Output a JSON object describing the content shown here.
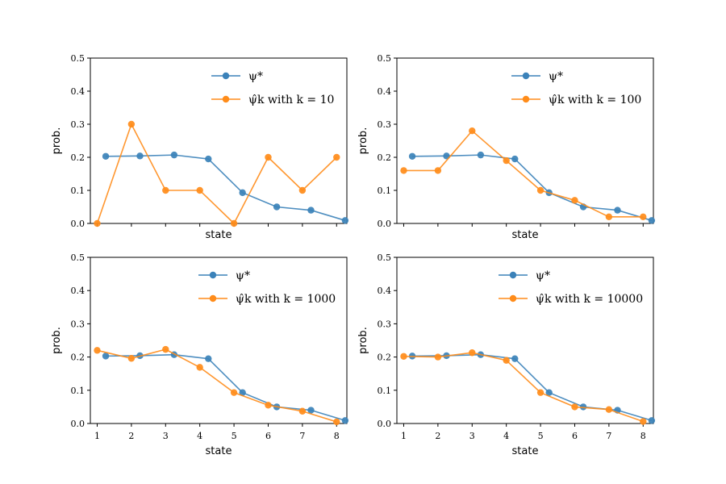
{
  "colors": {
    "psi_star": "#3b82b9",
    "psi_hat": "#ff8c1a"
  },
  "chart_data": [
    {
      "type": "line",
      "xlabel": "state",
      "ylabel": "prob.",
      "ylim": [
        0,
        0.5
      ],
      "xlim": [
        0.8,
        8.3
      ],
      "show_x_tick_labels": false,
      "yticks": [
        "0.0",
        "0.1",
        "0.2",
        "0.3",
        "0.4",
        "0.5"
      ],
      "xticks": [
        "1",
        "2",
        "3",
        "4",
        "5",
        "6",
        "7",
        "8"
      ],
      "legend": {
        "placement": "upper-right",
        "entries": [
          "ψ*",
          "ψ̂k with k = 10"
        ]
      },
      "series": [
        {
          "name": "ψ*",
          "color": "#3b82b9",
          "x": [
            1.25,
            2.25,
            3.25,
            4.25,
            5.25,
            6.25,
            7.25,
            8.25
          ],
          "y": [
            0.203,
            0.204,
            0.207,
            0.195,
            0.093,
            0.05,
            0.04,
            0.009
          ]
        },
        {
          "name": "ψ̂k with k = 10",
          "color": "#ff8c1a",
          "x": [
            1,
            2,
            3,
            4,
            5,
            6,
            7,
            8
          ],
          "y": [
            0.0,
            0.3,
            0.1,
            0.1,
            0.0,
            0.2,
            0.1,
            0.2
          ]
        }
      ]
    },
    {
      "type": "line",
      "xlabel": "state",
      "ylabel": "prob.",
      "ylim": [
        0,
        0.5
      ],
      "xlim": [
        0.8,
        8.3
      ],
      "show_x_tick_labels": false,
      "yticks": [
        "0.0",
        "0.1",
        "0.2",
        "0.3",
        "0.4",
        "0.5"
      ],
      "xticks": [
        "1",
        "2",
        "3",
        "4",
        "5",
        "6",
        "7",
        "8"
      ],
      "legend": {
        "placement": "upper-right",
        "entries": [
          "ψ*",
          "ψ̂k with k = 100"
        ]
      },
      "series": [
        {
          "name": "ψ*",
          "color": "#3b82b9",
          "x": [
            1.25,
            2.25,
            3.25,
            4.25,
            5.25,
            6.25,
            7.25,
            8.25
          ],
          "y": [
            0.203,
            0.204,
            0.207,
            0.195,
            0.093,
            0.05,
            0.04,
            0.009
          ]
        },
        {
          "name": "ψ̂k with k = 100",
          "color": "#ff8c1a",
          "x": [
            1,
            2,
            3,
            4,
            5,
            6,
            7,
            8
          ],
          "y": [
            0.16,
            0.16,
            0.28,
            0.19,
            0.1,
            0.07,
            0.02,
            0.02
          ]
        }
      ]
    },
    {
      "type": "line",
      "xlabel": "state",
      "ylabel": "prob.",
      "ylim": [
        0,
        0.5
      ],
      "xlim": [
        0.8,
        8.3
      ],
      "show_x_tick_labels": true,
      "yticks": [
        "0.0",
        "0.1",
        "0.2",
        "0.3",
        "0.4",
        "0.5"
      ],
      "xticks": [
        "1",
        "2",
        "3",
        "4",
        "5",
        "6",
        "7",
        "8"
      ],
      "legend": {
        "placement": "upper-right",
        "entries": [
          "ψ*",
          "ψ̂k with k = 1000"
        ]
      },
      "series": [
        {
          "name": "ψ*",
          "color": "#3b82b9",
          "x": [
            1.25,
            2.25,
            3.25,
            4.25,
            5.25,
            6.25,
            7.25,
            8.25
          ],
          "y": [
            0.203,
            0.204,
            0.207,
            0.195,
            0.093,
            0.05,
            0.04,
            0.009
          ]
        },
        {
          "name": "ψ̂k with k = 1000",
          "color": "#ff8c1a",
          "x": [
            1,
            2,
            3,
            4,
            5,
            6,
            7,
            8
          ],
          "y": [
            0.22,
            0.196,
            0.223,
            0.169,
            0.093,
            0.055,
            0.037,
            0.005
          ]
        }
      ]
    },
    {
      "type": "line",
      "xlabel": "state",
      "ylabel": "prob.",
      "ylim": [
        0,
        0.5
      ],
      "xlim": [
        0.8,
        8.3
      ],
      "show_x_tick_labels": true,
      "yticks": [
        "0.0",
        "0.1",
        "0.2",
        "0.3",
        "0.4",
        "0.5"
      ],
      "xticks": [
        "1",
        "2",
        "3",
        "4",
        "5",
        "6",
        "7",
        "8"
      ],
      "legend": {
        "placement": "upper-right",
        "entries": [
          "ψ*",
          "ψ̂k with k = 10000"
        ]
      },
      "series": [
        {
          "name": "ψ*",
          "color": "#3b82b9",
          "x": [
            1.25,
            2.25,
            3.25,
            4.25,
            5.25,
            6.25,
            7.25,
            8.25
          ],
          "y": [
            0.203,
            0.204,
            0.207,
            0.195,
            0.093,
            0.05,
            0.04,
            0.009
          ]
        },
        {
          "name": "ψ̂k with k = 10000",
          "color": "#ff8c1a",
          "x": [
            1,
            2,
            3,
            4,
            5,
            6,
            7,
            8
          ],
          "y": [
            0.202,
            0.2,
            0.213,
            0.19,
            0.093,
            0.05,
            0.042,
            0.006
          ]
        }
      ]
    }
  ]
}
